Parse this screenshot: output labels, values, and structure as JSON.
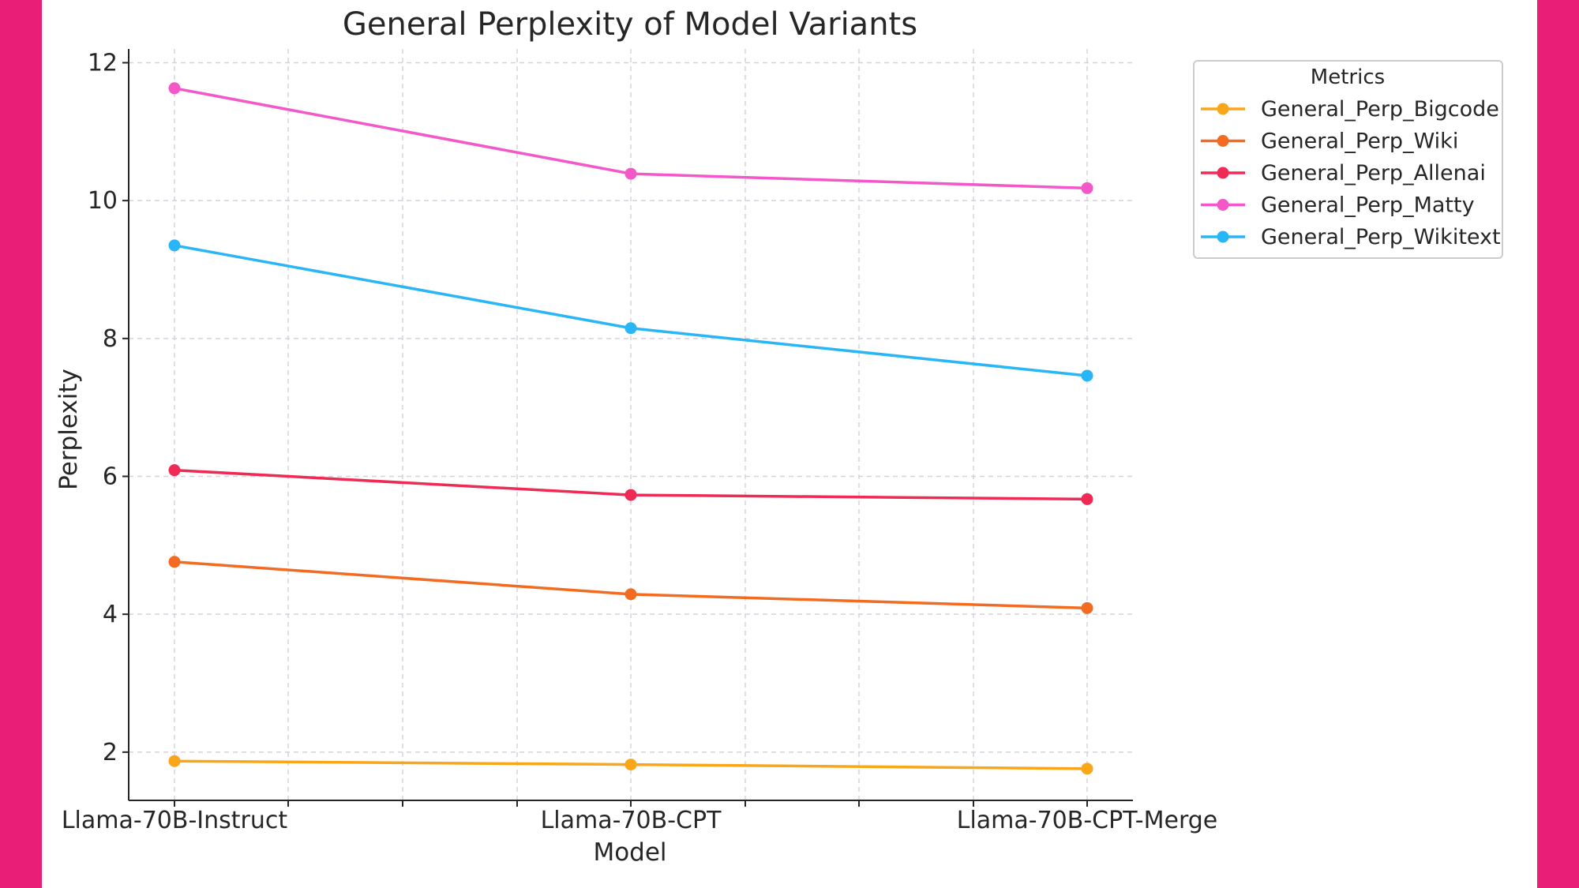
{
  "chart_data": {
    "type": "line",
    "title": "General Perplexity of Model Variants",
    "xlabel": "Model",
    "ylabel": "Perplexity",
    "categories": [
      "Llama-70B-Instruct",
      "Llama-70B-CPT",
      "Llama-70B-CPT-Merge"
    ],
    "ylim": [
      1.3,
      12.2
    ],
    "yticks": [
      2,
      4,
      6,
      8,
      10,
      12
    ],
    "grid": true,
    "legend": {
      "title": "Metrics",
      "placement": "outside-right-top"
    },
    "series": [
      {
        "name": "General_Perp_Bigcode",
        "color": "#f9a61a",
        "values": [
          1.87,
          1.82,
          1.76
        ]
      },
      {
        "name": "General_Perp_Wiki",
        "color": "#f26b21",
        "values": [
          4.76,
          4.29,
          4.09
        ]
      },
      {
        "name": "General_Perp_Allenai",
        "color": "#ee2a55",
        "values": [
          6.09,
          5.73,
          5.67
        ]
      },
      {
        "name": "General_Perp_Matty",
        "color": "#f357c8",
        "values": [
          11.63,
          10.39,
          10.18
        ]
      },
      {
        "name": "General_Perp_Wikitext",
        "color": "#29b6f6",
        "values": [
          9.35,
          8.15,
          7.46
        ]
      }
    ]
  },
  "colors": {
    "border": "#e91e76",
    "background": "#ffffff",
    "grid": "#d8d0dc",
    "axis": "#262626"
  }
}
